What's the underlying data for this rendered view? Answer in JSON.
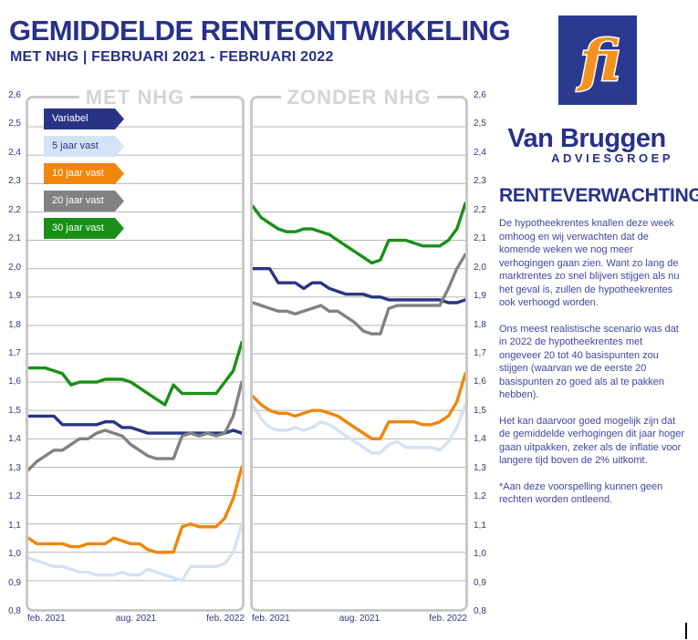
{
  "header": {
    "title": "GEMIDDELDE RENTEONTWIKKELING",
    "subtitle": "MET NHG | FEBRUARI 2021 - FEBRUARI 2022"
  },
  "branding": {
    "logo_text": "fi",
    "company_name": "Van Bruggen",
    "company_suffix": "ADVIESGROEP",
    "brand_blue": "#2b3990",
    "brand_orange": "#f6921e"
  },
  "sidebar": {
    "heading": "RENTEVERWACHTING",
    "paragraphs": [
      "De hypotheekrentes knallen deze week omhoog en wij verwachten dat de komende weken we nog meer verhogingen gaan zien. Want zo lang de marktrentes zo snel blijven stijgen als nu het geval is, zullen de hypotheekrentes ook verhoogd worden.",
      "Ons meest realistische scenario was dat in 2022 de hypotheekrentes met ongeveer 20 tot 40 basispunten zou stijgen (waarvan we de eerste 20 basispunten zo goed als al te pakken hebben).",
      "Het kan daarvoor goed mogelijk zijn dat de gemiddelde verhogingen dit jaar hoger gaan uitpakken, zeker als de inflatie voor langere tijd boven de 2% uitkomt."
    ],
    "footnote": "*Aan deze voorspelling kunnen geen rechten worden ontleend."
  },
  "chart_data": {
    "type": "line",
    "ylim": [
      0.8,
      2.6
    ],
    "grid": true,
    "y_ticks": [
      "2,6",
      "2,5",
      "2,4",
      "2,3",
      "2,2",
      "2,1",
      "2,0",
      "1,9",
      "1,8",
      "1,7",
      "1,6",
      "1,5",
      "1,4",
      "1,3",
      "1,2",
      "1,1",
      "1,0",
      "0,9",
      "0,8"
    ],
    "x_ticks": [
      "feb. 2021",
      "aug. 2021",
      "feb. 2022"
    ],
    "legend_position": "top-left inside first panel",
    "legend": [
      {
        "label": "Variabel",
        "color": "#2a3484",
        "text_color": "#ffffff"
      },
      {
        "label": "5 jaar vast",
        "color": "#d4e2f6",
        "text_color": "#2a3484"
      },
      {
        "label": "10 jaar vast",
        "color": "#f0860c",
        "text_color": "#ffffff"
      },
      {
        "label": "20 jaar vast",
        "color": "#828282",
        "text_color": "#ffffff"
      },
      {
        "label": "30 jaar vast",
        "color": "#189018",
        "text_color": "#ffffff"
      }
    ],
    "panels": [
      {
        "title": "MET NHG",
        "series": [
          {
            "name": "Variabel",
            "values": [
              1.48,
              1.48,
              1.48,
              1.48,
              1.45,
              1.45,
              1.45,
              1.45,
              1.45,
              1.46,
              1.46,
              1.44,
              1.44,
              1.43,
              1.42,
              1.42,
              1.42,
              1.42,
              1.42,
              1.42,
              1.42,
              1.42,
              1.42,
              1.42,
              1.43,
              1.42
            ]
          },
          {
            "name": "5 jaar vast",
            "values": [
              0.98,
              0.97,
              0.96,
              0.95,
              0.95,
              0.94,
              0.93,
              0.93,
              0.92,
              0.92,
              0.92,
              0.93,
              0.92,
              0.92,
              0.94,
              0.93,
              0.92,
              0.91,
              0.9,
              0.95,
              0.95,
              0.95,
              0.95,
              0.96,
              1.0,
              1.1
            ]
          },
          {
            "name": "10 jaar vast",
            "values": [
              1.05,
              1.03,
              1.03,
              1.03,
              1.03,
              1.02,
              1.02,
              1.03,
              1.03,
              1.03,
              1.05,
              1.04,
              1.03,
              1.03,
              1.01,
              1.0,
              1.0,
              1.0,
              1.09,
              1.1,
              1.09,
              1.09,
              1.09,
              1.12,
              1.19,
              1.3
            ]
          },
          {
            "name": "20 jaar vast",
            "values": [
              1.29,
              1.32,
              1.34,
              1.36,
              1.36,
              1.38,
              1.4,
              1.4,
              1.42,
              1.43,
              1.42,
              1.41,
              1.38,
              1.36,
              1.34,
              1.33,
              1.33,
              1.33,
              1.41,
              1.42,
              1.41,
              1.42,
              1.41,
              1.42,
              1.48,
              1.6
            ]
          },
          {
            "name": "30 jaar vast",
            "values": [
              1.65,
              1.65,
              1.65,
              1.64,
              1.63,
              1.59,
              1.6,
              1.6,
              1.6,
              1.61,
              1.61,
              1.61,
              1.6,
              1.58,
              1.56,
              1.54,
              1.52,
              1.59,
              1.56,
              1.56,
              1.56,
              1.56,
              1.56,
              1.6,
              1.64,
              1.74
            ]
          }
        ]
      },
      {
        "title": "ZONDER NHG",
        "series": [
          {
            "name": "Variabel",
            "values": [
              2.0,
              2.0,
              2.0,
              1.95,
              1.95,
              1.95,
              1.93,
              1.95,
              1.95,
              1.93,
              1.92,
              1.91,
              1.91,
              1.91,
              1.9,
              1.9,
              1.89,
              1.89,
              1.89,
              1.89,
              1.89,
              1.89,
              1.89,
              1.88,
              1.88,
              1.89
            ]
          },
          {
            "name": "5 jaar vast",
            "values": [
              1.52,
              1.47,
              1.44,
              1.43,
              1.43,
              1.44,
              1.43,
              1.44,
              1.46,
              1.45,
              1.43,
              1.41,
              1.39,
              1.37,
              1.35,
              1.35,
              1.38,
              1.39,
              1.37,
              1.37,
              1.37,
              1.37,
              1.36,
              1.39,
              1.44,
              1.52
            ]
          },
          {
            "name": "10 jaar vast",
            "values": [
              1.55,
              1.52,
              1.5,
              1.49,
              1.49,
              1.48,
              1.49,
              1.5,
              1.5,
              1.49,
              1.48,
              1.46,
              1.44,
              1.42,
              1.4,
              1.4,
              1.46,
              1.46,
              1.46,
              1.46,
              1.45,
              1.45,
              1.46,
              1.48,
              1.53,
              1.63
            ]
          },
          {
            "name": "20 jaar vast",
            "values": [
              1.88,
              1.87,
              1.86,
              1.85,
              1.85,
              1.84,
              1.85,
              1.86,
              1.87,
              1.85,
              1.85,
              1.83,
              1.81,
              1.78,
              1.77,
              1.77,
              1.86,
              1.87,
              1.87,
              1.87,
              1.87,
              1.87,
              1.87,
              1.93,
              2.0,
              2.05
            ]
          },
          {
            "name": "30 jaar vast",
            "values": [
              2.22,
              2.18,
              2.16,
              2.14,
              2.13,
              2.13,
              2.14,
              2.14,
              2.13,
              2.12,
              2.1,
              2.08,
              2.06,
              2.04,
              2.02,
              2.03,
              2.1,
              2.1,
              2.1,
              2.09,
              2.08,
              2.08,
              2.08,
              2.1,
              2.14,
              2.23
            ]
          }
        ]
      }
    ]
  }
}
